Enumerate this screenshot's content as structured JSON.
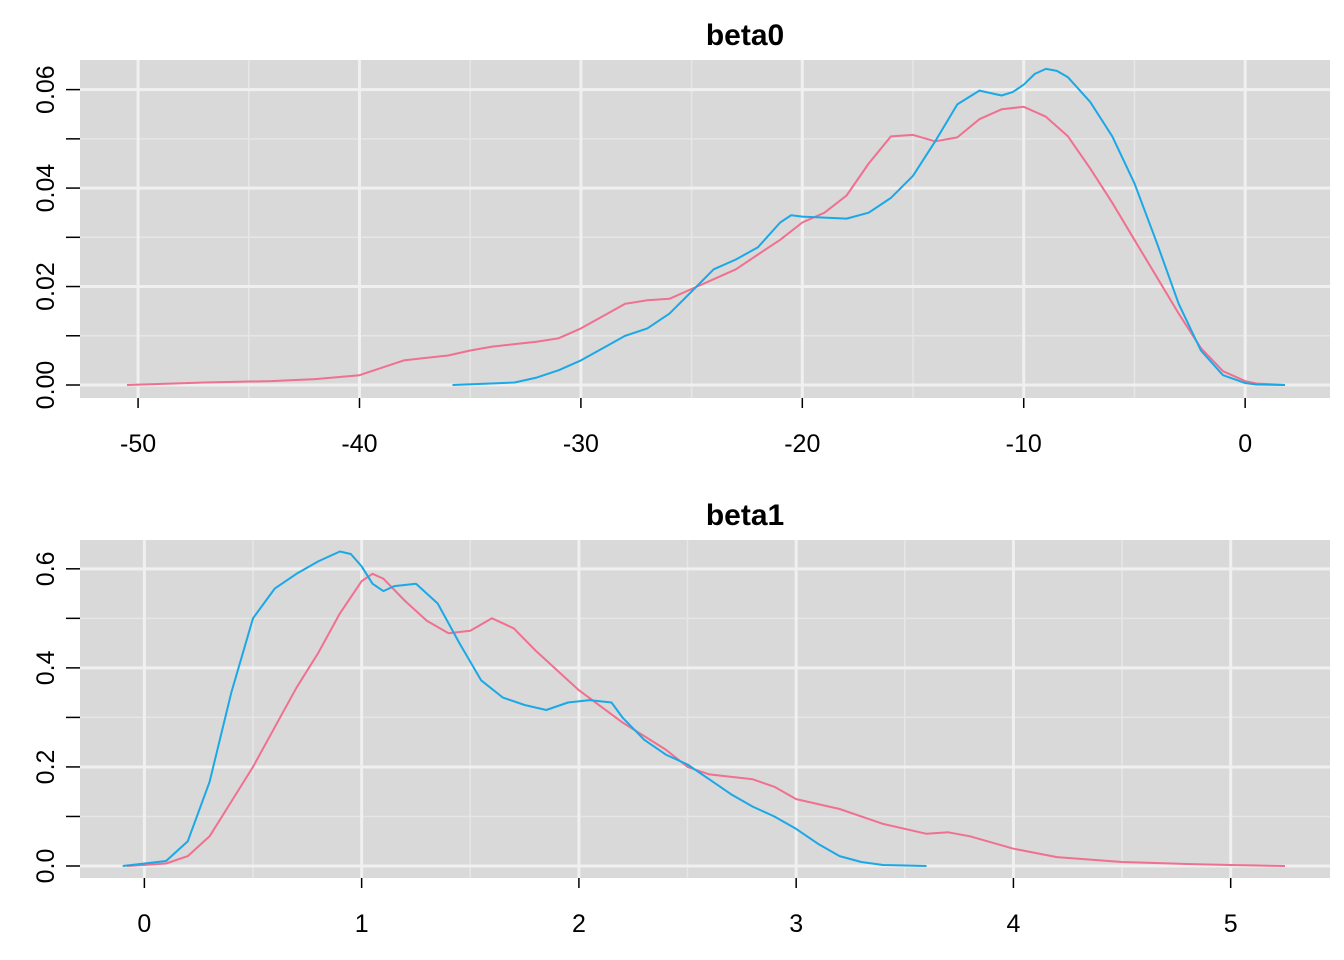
{
  "chart_data": [
    {
      "type": "line",
      "title": "beta0",
      "xlim": [
        -50.5,
        1.8
      ],
      "ylim": [
        0,
        0.065
      ],
      "xticks": [
        -50,
        -40,
        -30,
        -20,
        -10,
        0
      ],
      "xtick_labels": [
        "-50",
        "-40",
        "-30",
        "-20",
        "-10",
        "0"
      ],
      "yticks": [
        0,
        0.02,
        0.04,
        0.06
      ],
      "ytick_labels": [
        "0.00",
        "0.02",
        "0.04",
        "0.06"
      ],
      "grid": true,
      "legend": "none",
      "series": [
        {
          "color": "#F8766D",
          "stroke": "#f07090",
          "x": [
            -50.5,
            -47,
            -44,
            -42,
            -40,
            -39,
            -38,
            -37,
            -36,
            -35,
            -34,
            -33,
            -32,
            -31,
            -30,
            -29,
            -28,
            -27,
            -26,
            -25,
            -24,
            -23,
            -22,
            -21,
            -20,
            -19,
            -18,
            -17,
            -16,
            -15,
            -14,
            -13,
            -12,
            -11,
            -10,
            -9,
            -8,
            -7,
            -6,
            -5,
            -4,
            -3,
            -2,
            -1,
            0,
            0.5,
            1.8
          ],
          "y": [
            0,
            0.0005,
            0.0008,
            0.0012,
            0.002,
            0.0035,
            0.005,
            0.0055,
            0.006,
            0.007,
            0.0078,
            0.0083,
            0.0088,
            0.0095,
            0.0115,
            0.014,
            0.0165,
            0.0172,
            0.0175,
            0.0195,
            0.0215,
            0.0235,
            0.0265,
            0.0295,
            0.033,
            0.035,
            0.0385,
            0.045,
            0.0505,
            0.0508,
            0.0495,
            0.0503,
            0.054,
            0.056,
            0.0565,
            0.0545,
            0.0505,
            0.044,
            0.037,
            0.0295,
            0.022,
            0.0145,
            0.0075,
            0.0028,
            0.0008,
            0.0003,
            0
          ]
        },
        {
          "color": "#00BFC4",
          "stroke": "#1aa8e6",
          "x": [
            -35.8,
            -33,
            -32,
            -31,
            -30,
            -29,
            -28,
            -27,
            -26,
            -25,
            -24,
            -23,
            -22,
            -21,
            -20.5,
            -20,
            -19,
            -18,
            -17,
            -16,
            -15,
            -14,
            -13,
            -12,
            -11,
            -10.5,
            -10,
            -9.5,
            -9,
            -8.5,
            -8,
            -7,
            -6,
            -5,
            -4,
            -3,
            -2,
            -1,
            0,
            0.5,
            1.8
          ],
          "y": [
            0,
            0.0005,
            0.0015,
            0.003,
            0.005,
            0.0075,
            0.01,
            0.0115,
            0.0145,
            0.019,
            0.0235,
            0.0255,
            0.028,
            0.033,
            0.0345,
            0.0342,
            0.034,
            0.0338,
            0.035,
            0.038,
            0.0425,
            0.0495,
            0.057,
            0.0598,
            0.0588,
            0.0595,
            0.061,
            0.0632,
            0.0642,
            0.0638,
            0.0625,
            0.0575,
            0.0505,
            0.041,
            0.029,
            0.0165,
            0.007,
            0.002,
            0.0004,
            0.0001,
            0
          ]
        }
      ]
    },
    {
      "type": "line",
      "title": "beta1",
      "xlim": [
        -0.08,
        5.25
      ],
      "ylim": [
        0,
        0.64
      ],
      "xticks": [
        0,
        1,
        2,
        3,
        4,
        5
      ],
      "xtick_labels": [
        "0",
        "1",
        "2",
        "3",
        "4",
        "5"
      ],
      "yticks": [
        0,
        0.2,
        0.4,
        0.6
      ],
      "ytick_labels": [
        "0.0",
        "0.2",
        "0.4",
        "0.6"
      ],
      "grid": true,
      "legend": "none",
      "series": [
        {
          "color": "#F8766D",
          "stroke": "#f07090",
          "x": [
            -0.08,
            0.1,
            0.2,
            0.3,
            0.4,
            0.5,
            0.6,
            0.7,
            0.8,
            0.9,
            1.0,
            1.05,
            1.1,
            1.2,
            1.3,
            1.4,
            1.5,
            1.6,
            1.7,
            1.8,
            2.0,
            2.2,
            2.4,
            2.5,
            2.6,
            2.8,
            2.9,
            3.0,
            3.2,
            3.4,
            3.6,
            3.7,
            3.8,
            4.0,
            4.2,
            4.5,
            4.8,
            5.0,
            5.25
          ],
          "y": [
            0,
            0.005,
            0.02,
            0.06,
            0.13,
            0.2,
            0.28,
            0.36,
            0.43,
            0.51,
            0.575,
            0.59,
            0.58,
            0.535,
            0.495,
            0.47,
            0.475,
            0.5,
            0.48,
            0.435,
            0.355,
            0.29,
            0.235,
            0.2,
            0.185,
            0.175,
            0.16,
            0.135,
            0.115,
            0.085,
            0.065,
            0.068,
            0.06,
            0.035,
            0.018,
            0.008,
            0.004,
            0.002,
            0
          ]
        },
        {
          "color": "#00BFC4",
          "stroke": "#1aa8e6",
          "x": [
            -0.1,
            0.1,
            0.2,
            0.3,
            0.4,
            0.5,
            0.6,
            0.7,
            0.8,
            0.9,
            0.95,
            1.0,
            1.05,
            1.1,
            1.15,
            1.25,
            1.35,
            1.45,
            1.55,
            1.65,
            1.75,
            1.85,
            1.95,
            2.05,
            2.15,
            2.2,
            2.3,
            2.4,
            2.5,
            2.6,
            2.7,
            2.8,
            2.9,
            3.0,
            3.1,
            3.2,
            3.3,
            3.4,
            3.6
          ],
          "y": [
            0,
            0.01,
            0.05,
            0.17,
            0.35,
            0.5,
            0.56,
            0.59,
            0.615,
            0.635,
            0.63,
            0.605,
            0.57,
            0.555,
            0.565,
            0.57,
            0.53,
            0.45,
            0.375,
            0.34,
            0.325,
            0.315,
            0.33,
            0.335,
            0.33,
            0.3,
            0.255,
            0.225,
            0.205,
            0.175,
            0.145,
            0.12,
            0.1,
            0.075,
            0.045,
            0.02,
            0.008,
            0.002,
            0
          ]
        }
      ]
    }
  ]
}
